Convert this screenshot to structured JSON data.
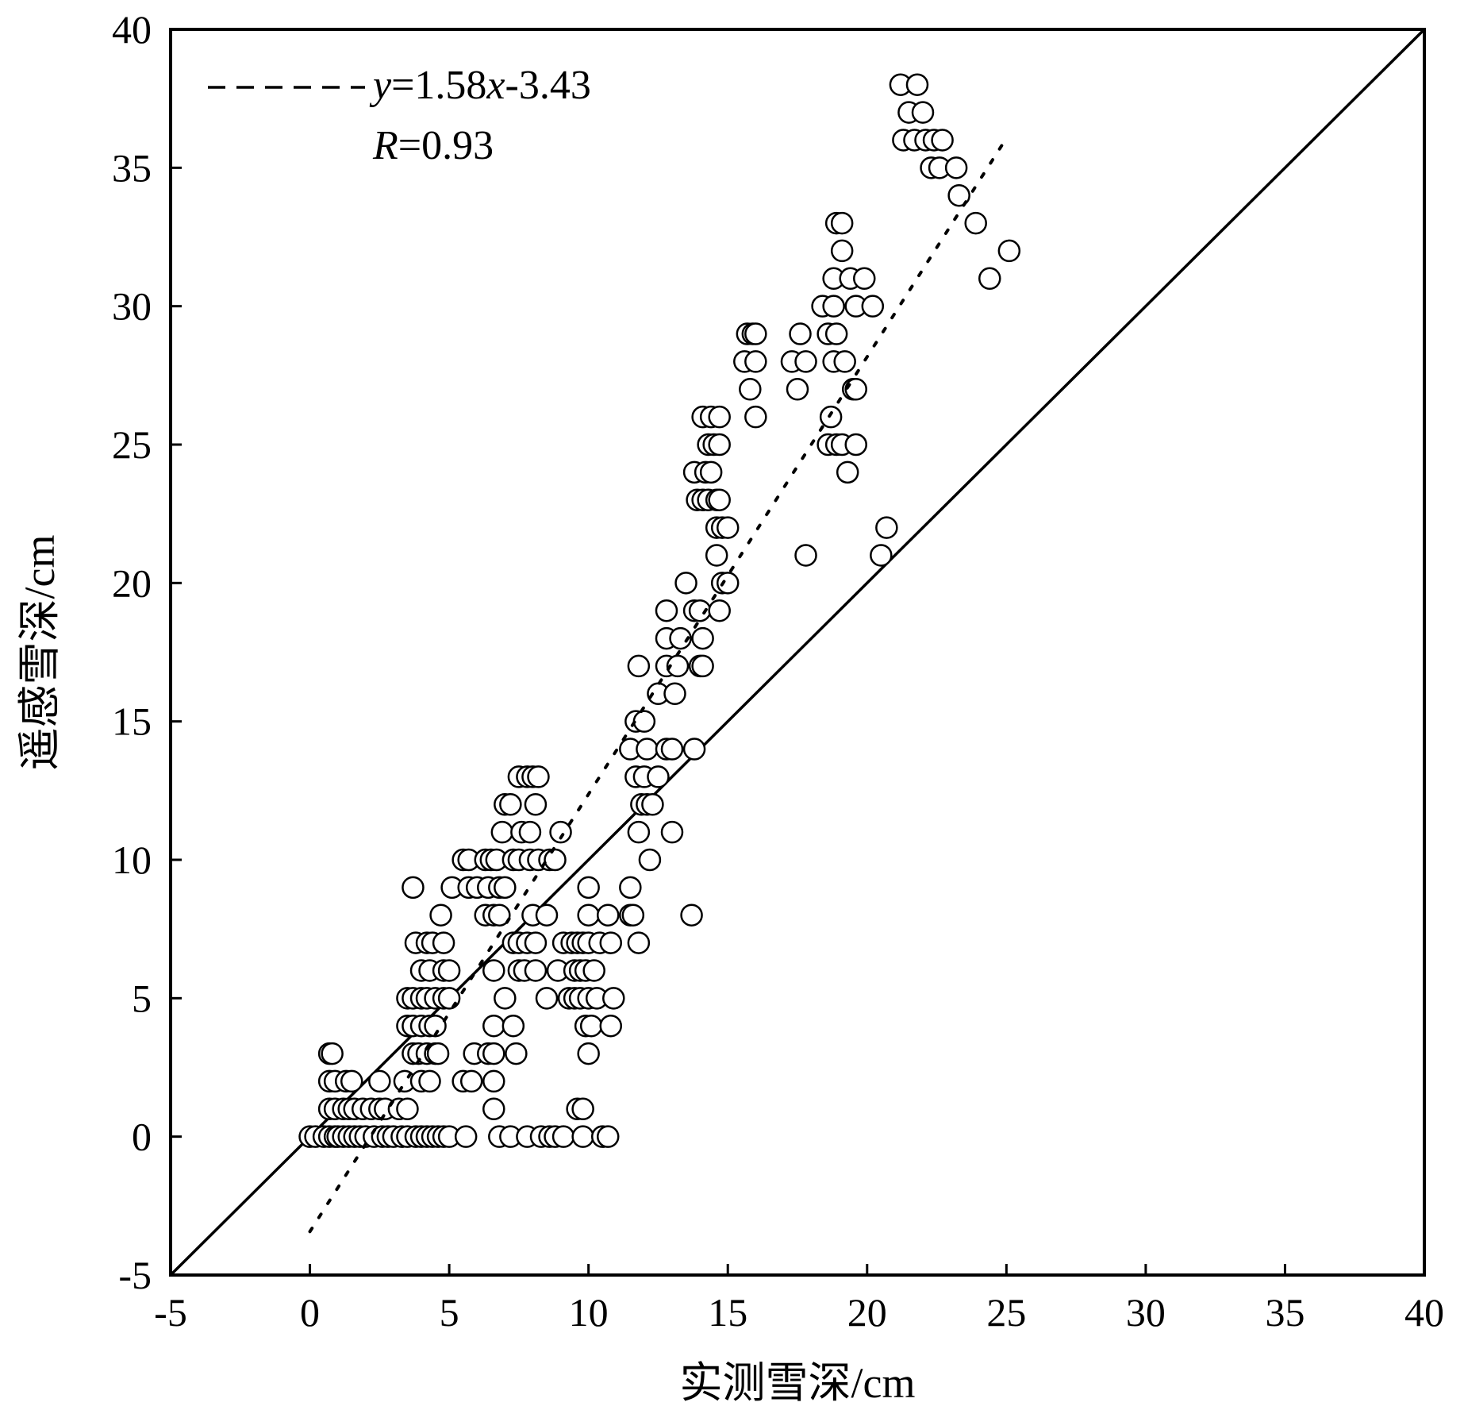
{
  "chart_data": {
    "type": "scatter",
    "xlabel": "实测雪深/cm",
    "ylabel": "遥感雪深/cm",
    "xlim": [
      -5,
      40
    ],
    "ylim": [
      -5,
      40
    ],
    "x_ticks": [
      "-5",
      "0",
      "5",
      "10",
      "15",
      "20",
      "25",
      "30",
      "35",
      "40"
    ],
    "y_ticks": [
      "-5",
      "0",
      "5",
      "10",
      "15",
      "20",
      "25",
      "30",
      "35",
      "40"
    ],
    "grid": false,
    "legend_position": "top-left",
    "fit_line": {
      "label_y": "y",
      "label_eq": "=1.58",
      "label_x": "x",
      "label_const": "-3.43",
      "slope": 1.58,
      "intercept": -3.43,
      "x_range": [
        0,
        25
      ],
      "style": "dashed"
    },
    "r_text": {
      "symbol": "R",
      "value": "=0.93"
    },
    "reference_line": {
      "style": "solid",
      "description": "1:1",
      "from": [
        -5,
        -5
      ],
      "to": [
        40,
        40
      ]
    },
    "points": [
      [
        0.0,
        0
      ],
      [
        0.2,
        0
      ],
      [
        0.5,
        0
      ],
      [
        0.7,
        0
      ],
      [
        0.9,
        0
      ],
      [
        1.0,
        0
      ],
      [
        1.2,
        0
      ],
      [
        1.4,
        0
      ],
      [
        1.6,
        0
      ],
      [
        1.8,
        0
      ],
      [
        2.0,
        0
      ],
      [
        2.3,
        0
      ],
      [
        2.6,
        0
      ],
      [
        2.8,
        0
      ],
      [
        3.0,
        0
      ],
      [
        3.3,
        0
      ],
      [
        3.5,
        0
      ],
      [
        3.8,
        0
      ],
      [
        4.0,
        0
      ],
      [
        4.2,
        0
      ],
      [
        4.4,
        0
      ],
      [
        4.6,
        0
      ],
      [
        4.8,
        0
      ],
      [
        5.0,
        0
      ],
      [
        5.6,
        0
      ],
      [
        6.8,
        0
      ],
      [
        7.2,
        0
      ],
      [
        7.8,
        0
      ],
      [
        8.3,
        0
      ],
      [
        8.6,
        0
      ],
      [
        8.8,
        0
      ],
      [
        9.1,
        0
      ],
      [
        9.8,
        0
      ],
      [
        10.5,
        0
      ],
      [
        10.7,
        0
      ],
      [
        0.7,
        1
      ],
      [
        0.9,
        1
      ],
      [
        1.2,
        1
      ],
      [
        1.4,
        1
      ],
      [
        1.6,
        1
      ],
      [
        1.9,
        1
      ],
      [
        2.2,
        1
      ],
      [
        2.5,
        1
      ],
      [
        2.7,
        1
      ],
      [
        3.2,
        1
      ],
      [
        3.5,
        1
      ],
      [
        6.6,
        1
      ],
      [
        9.6,
        1
      ],
      [
        9.8,
        1
      ],
      [
        0.7,
        2
      ],
      [
        0.9,
        2
      ],
      [
        1.3,
        2
      ],
      [
        1.5,
        2
      ],
      [
        2.5,
        2
      ],
      [
        3.4,
        2
      ],
      [
        4.0,
        2
      ],
      [
        4.3,
        2
      ],
      [
        5.5,
        2
      ],
      [
        5.8,
        2
      ],
      [
        6.6,
        2
      ],
      [
        0.7,
        3
      ],
      [
        0.8,
        3
      ],
      [
        3.7,
        3
      ],
      [
        3.9,
        3
      ],
      [
        4.2,
        3
      ],
      [
        4.5,
        3
      ],
      [
        4.6,
        3
      ],
      [
        5.9,
        3
      ],
      [
        6.4,
        3
      ],
      [
        6.6,
        3
      ],
      [
        7.4,
        3
      ],
      [
        10.0,
        3
      ],
      [
        3.5,
        4
      ],
      [
        3.7,
        4
      ],
      [
        4.0,
        4
      ],
      [
        4.3,
        4
      ],
      [
        4.5,
        4
      ],
      [
        6.6,
        4
      ],
      [
        7.3,
        4
      ],
      [
        9.9,
        4
      ],
      [
        10.1,
        4
      ],
      [
        10.8,
        4
      ],
      [
        3.5,
        5
      ],
      [
        3.7,
        5
      ],
      [
        4.0,
        5
      ],
      [
        4.2,
        5
      ],
      [
        4.5,
        5
      ],
      [
        4.8,
        5
      ],
      [
        5.0,
        5
      ],
      [
        7.0,
        5
      ],
      [
        8.5,
        5
      ],
      [
        9.3,
        5
      ],
      [
        9.5,
        5
      ],
      [
        9.7,
        5
      ],
      [
        10.0,
        5
      ],
      [
        10.3,
        5
      ],
      [
        10.9,
        5
      ],
      [
        4.0,
        6
      ],
      [
        4.3,
        6
      ],
      [
        4.8,
        6
      ],
      [
        5.0,
        6
      ],
      [
        6.6,
        6
      ],
      [
        7.5,
        6
      ],
      [
        7.7,
        6
      ],
      [
        8.1,
        6
      ],
      [
        8.9,
        6
      ],
      [
        9.5,
        6
      ],
      [
        9.7,
        6
      ],
      [
        9.9,
        6
      ],
      [
        10.2,
        6
      ],
      [
        3.8,
        7
      ],
      [
        4.2,
        7
      ],
      [
        4.4,
        7
      ],
      [
        4.8,
        7
      ],
      [
        7.3,
        7
      ],
      [
        7.5,
        7
      ],
      [
        7.8,
        7
      ],
      [
        8.1,
        7
      ],
      [
        9.1,
        7
      ],
      [
        9.4,
        7
      ],
      [
        9.6,
        7
      ],
      [
        9.8,
        7
      ],
      [
        10.0,
        7
      ],
      [
        10.4,
        7
      ],
      [
        10.8,
        7
      ],
      [
        11.8,
        7
      ],
      [
        4.7,
        8
      ],
      [
        6.3,
        8
      ],
      [
        6.6,
        8
      ],
      [
        6.8,
        8
      ],
      [
        8.0,
        8
      ],
      [
        8.5,
        8
      ],
      [
        10.0,
        8
      ],
      [
        10.7,
        8
      ],
      [
        11.5,
        8
      ],
      [
        11.6,
        8
      ],
      [
        13.7,
        8
      ],
      [
        3.7,
        9
      ],
      [
        5.1,
        9
      ],
      [
        5.7,
        9
      ],
      [
        6.0,
        9
      ],
      [
        6.4,
        9
      ],
      [
        6.8,
        9
      ],
      [
        7.0,
        9
      ],
      [
        10.0,
        9
      ],
      [
        11.5,
        9
      ],
      [
        5.5,
        10
      ],
      [
        5.7,
        10
      ],
      [
        6.3,
        10
      ],
      [
        6.5,
        10
      ],
      [
        6.7,
        10
      ],
      [
        7.3,
        10
      ],
      [
        7.5,
        10
      ],
      [
        7.9,
        10
      ],
      [
        8.2,
        10
      ],
      [
        8.6,
        10
      ],
      [
        8.8,
        10
      ],
      [
        12.2,
        10
      ],
      [
        6.9,
        11
      ],
      [
        7.6,
        11
      ],
      [
        7.9,
        11
      ],
      [
        9.0,
        11
      ],
      [
        11.8,
        11
      ],
      [
        13.0,
        11
      ],
      [
        7.0,
        12
      ],
      [
        7.2,
        12
      ],
      [
        8.1,
        12
      ],
      [
        11.9,
        12
      ],
      [
        12.1,
        12
      ],
      [
        12.3,
        12
      ],
      [
        7.5,
        13
      ],
      [
        7.8,
        13
      ],
      [
        8.0,
        13
      ],
      [
        8.2,
        13
      ],
      [
        11.7,
        13
      ],
      [
        12.0,
        13
      ],
      [
        12.5,
        13
      ],
      [
        11.5,
        14
      ],
      [
        12.1,
        14
      ],
      [
        12.8,
        14
      ],
      [
        13.0,
        14
      ],
      [
        13.8,
        14
      ],
      [
        11.7,
        15
      ],
      [
        12.0,
        15
      ],
      [
        11.8,
        17
      ],
      [
        12.5,
        16
      ],
      [
        12.8,
        17
      ],
      [
        13.1,
        16
      ],
      [
        13.2,
        17
      ],
      [
        14.0,
        17
      ],
      [
        14.1,
        17
      ],
      [
        12.8,
        18
      ],
      [
        13.3,
        18
      ],
      [
        14.1,
        18
      ],
      [
        12.8,
        19
      ],
      [
        13.8,
        19
      ],
      [
        14.0,
        19
      ],
      [
        14.7,
        19
      ],
      [
        13.5,
        20
      ],
      [
        14.8,
        20
      ],
      [
        15.0,
        20
      ],
      [
        14.6,
        21
      ],
      [
        17.8,
        21
      ],
      [
        20.5,
        21
      ],
      [
        14.6,
        22
      ],
      [
        14.8,
        22
      ],
      [
        15.0,
        22
      ],
      [
        20.7,
        22
      ],
      [
        13.9,
        23
      ],
      [
        14.1,
        23
      ],
      [
        14.3,
        23
      ],
      [
        14.6,
        23
      ],
      [
        14.7,
        23
      ],
      [
        13.8,
        24
      ],
      [
        14.2,
        24
      ],
      [
        14.4,
        24
      ],
      [
        19.3,
        24
      ],
      [
        14.3,
        25
      ],
      [
        14.5,
        25
      ],
      [
        14.7,
        25
      ],
      [
        18.6,
        25
      ],
      [
        18.9,
        25
      ],
      [
        19.1,
        25
      ],
      [
        19.6,
        25
      ],
      [
        14.1,
        26
      ],
      [
        14.4,
        26
      ],
      [
        14.7,
        26
      ],
      [
        16.0,
        26
      ],
      [
        18.7,
        26
      ],
      [
        15.8,
        27
      ],
      [
        17.5,
        27
      ],
      [
        19.5,
        27
      ],
      [
        19.6,
        27
      ],
      [
        15.6,
        28
      ],
      [
        16.0,
        28
      ],
      [
        17.3,
        28
      ],
      [
        17.8,
        28
      ],
      [
        18.8,
        28
      ],
      [
        19.2,
        28
      ],
      [
        15.7,
        29
      ],
      [
        15.9,
        29
      ],
      [
        16.0,
        29
      ],
      [
        17.6,
        29
      ],
      [
        18.6,
        29
      ],
      [
        18.9,
        29
      ],
      [
        18.4,
        30
      ],
      [
        18.8,
        30
      ],
      [
        19.6,
        30
      ],
      [
        20.2,
        30
      ],
      [
        18.8,
        31
      ],
      [
        19.4,
        31
      ],
      [
        19.9,
        31
      ],
      [
        24.4,
        31
      ],
      [
        19.1,
        32
      ],
      [
        25.1,
        32
      ],
      [
        18.9,
        33
      ],
      [
        19.1,
        33
      ],
      [
        23.9,
        33
      ],
      [
        23.3,
        34
      ],
      [
        22.3,
        35
      ],
      [
        22.6,
        35
      ],
      [
        23.2,
        35
      ],
      [
        21.3,
        36
      ],
      [
        21.7,
        36
      ],
      [
        22.1,
        36
      ],
      [
        22.4,
        36
      ],
      [
        22.7,
        36
      ],
      [
        21.5,
        37
      ],
      [
        22.0,
        37
      ],
      [
        21.2,
        38
      ],
      [
        21.8,
        38
      ]
    ]
  }
}
